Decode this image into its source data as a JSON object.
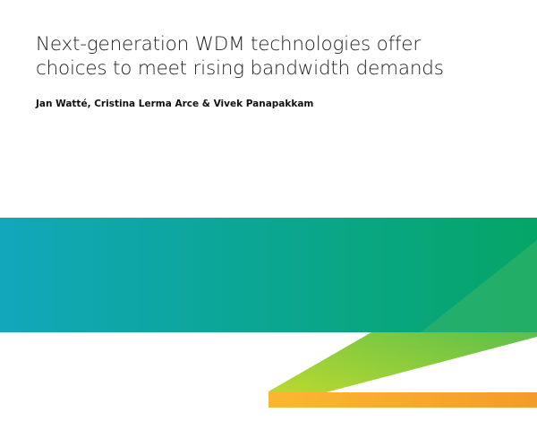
{
  "title": [
    "Next-generation WDM technologies offer",
    "choices to meet rising bandwidth demands"
  ],
  "authors": "Jan Watté, Cristina Lerma Arce & Vivek Panapakkam"
}
